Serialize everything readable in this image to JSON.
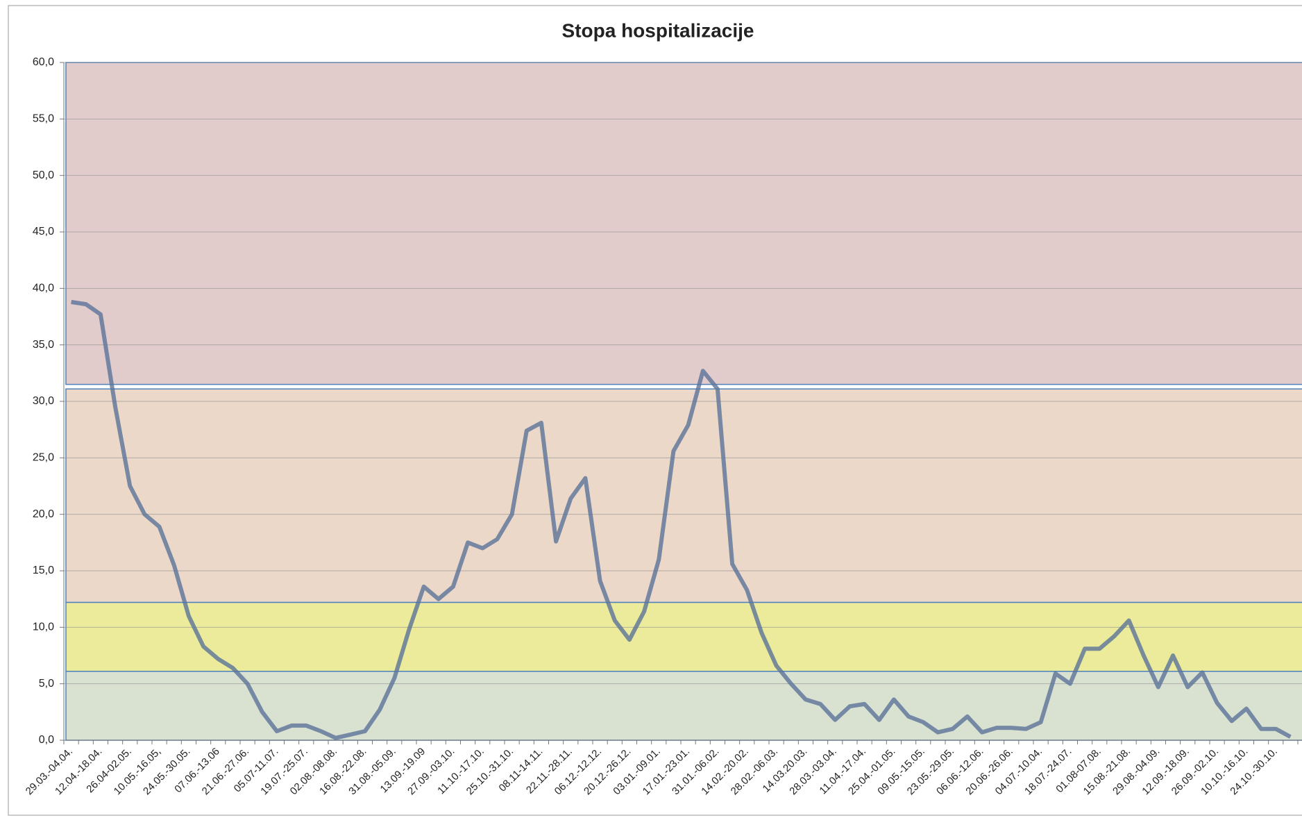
{
  "chart_data": {
    "type": "line",
    "title": "Stopa hospitalizacije",
    "categories": [
      "29.03.-04.04.",
      null,
      "12.04.-18.04.",
      null,
      "26.04-02.05.",
      null,
      "10.05.-16.05,",
      null,
      "24.05.-30.05.",
      null,
      "07.06.-13.06",
      null,
      "21.06.-27.06.",
      null,
      "05.07-11.07.",
      null,
      "19.07.-25.07.",
      null,
      "02.08.-08.08.",
      null,
      "16.08.-22.08.",
      null,
      "31.08.-05.09.",
      null,
      "13.09.-19.09",
      null,
      "27.09.-03.10.",
      null,
      "11.10.-17.10.",
      null,
      "25.10.-31.10.",
      null,
      "08.11-14.11.",
      null,
      "22.11.-28.11.",
      null,
      "06.12.-12.12.",
      null,
      "20.12.-26.12.",
      null,
      "03.01.-09.01.",
      null,
      "17.01.-23.01.",
      null,
      "31.01.-06.02.",
      null,
      "14.02.-20.02.",
      null,
      "28.02.-06.03.",
      null,
      "14.03.20.03.",
      null,
      "28.03.-03.04.",
      null,
      "11.04.-17.04.",
      null,
      "25.04.-01.05.",
      null,
      "09.05.-15.05.",
      null,
      "23.05.-29.05.",
      null,
      "06.06.-12.06.",
      null,
      "20.06.-26.06.",
      null,
      "04.07.-10.04.",
      null,
      "18.07.-24.07.",
      null,
      "01.08-07.08.",
      null,
      "15.08.-21.08.",
      null,
      "29.08.-04.09.",
      null,
      "12.09.-18.09.",
      null,
      "26.09.-02.10.",
      null,
      "10.10.-16.10.",
      null,
      "24.10.-30.10.",
      null
    ],
    "values": [
      38.8,
      38.6,
      37.7,
      29.5,
      22.5,
      20.0,
      18.9,
      15.5,
      11.0,
      8.3,
      7.2,
      6.4,
      5.0,
      2.5,
      0.8,
      1.3,
      1.3,
      0.8,
      0.2,
      0.5,
      0.8,
      2.7,
      5.5,
      9.8,
      13.6,
      12.5,
      13.6,
      17.5,
      17.0,
      17.8,
      20.0,
      27.4,
      28.1,
      17.6,
      21.4,
      23.2,
      14.1,
      10.6,
      8.9,
      11.4,
      16.0,
      25.6,
      27.9,
      32.7,
      31.1,
      15.6,
      13.3,
      9.5,
      6.6,
      5.0,
      3.6,
      3.2,
      1.8,
      3.0,
      3.2,
      1.8,
      3.6,
      2.1,
      1.6,
      0.7,
      1.0,
      2.1,
      0.7,
      1.1,
      1.1,
      1.0,
      1.6,
      5.9,
      5.0,
      8.1,
      8.1,
      9.2,
      10.6,
      7.5,
      4.7,
      7.5,
      4.7,
      6.0,
      3.3,
      1.7,
      2.8,
      1.0,
      1.0,
      0.3
    ],
    "color": "#5b7399",
    "bands": [
      {
        "from": 31.5,
        "to": 60,
        "color": "#e2cbcb"
      },
      {
        "from": 12.2,
        "to": 31.1,
        "color": "#ecd8c9"
      },
      {
        "from": 6.1,
        "to": 12.2,
        "color": "#ebeb9b"
      },
      {
        "from": 0,
        "to": 6.1,
        "color": "#d9e2d1"
      }
    ],
    "ylim": [
      0,
      60
    ],
    "yticks": [
      {
        "value": 0,
        "label": "0,0"
      },
      {
        "value": 5,
        "label": "5,0"
      },
      {
        "value": 10,
        "label": "10,0"
      },
      {
        "value": 15,
        "label": "15,0"
      },
      {
        "value": 20,
        "label": "20,0"
      },
      {
        "value": 25,
        "label": "25,0"
      },
      {
        "value": 30,
        "label": "30,0"
      },
      {
        "value": 35,
        "label": "35,0"
      },
      {
        "value": 40,
        "label": "40,0"
      },
      {
        "value": 45,
        "label": "45,0"
      },
      {
        "value": 50,
        "label": "50,0"
      },
      {
        "value": 55,
        "label": "55,0"
      },
      {
        "value": 60,
        "label": "60,0"
      }
    ],
    "grid": true
  }
}
